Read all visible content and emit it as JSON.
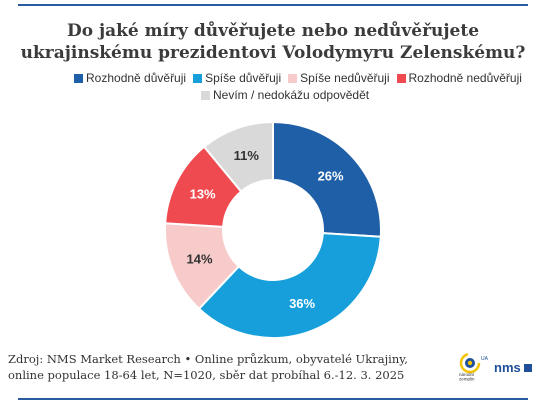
{
  "title": "Do jaké míry důvěřujete nebo nedůvěřujete ukrajinskému prezidentovi Volodymyru Zelenskému?",
  "legend": [
    {
      "label": "Rozhodně důvěřuji",
      "color": "#1f5fa8"
    },
    {
      "label": "Spíše důvěřuji",
      "color": "#169fdb"
    },
    {
      "label": "Spíše nedůvěřuji",
      "color": "#f8cbcb"
    },
    {
      "label": "Rozhodně nedůvěřuji",
      "color": "#ef4a50"
    },
    {
      "label": "Nevím / nedokážu odpovědět",
      "color": "#d9d9d9"
    }
  ],
  "chart_data": {
    "type": "pie",
    "donut": true,
    "title": "Do jaké míry důvěřujete nebo nedůvěřujete ukrajinskému prezidentovi Volodymyru Zelenskému?",
    "categories": [
      "Rozhodně důvěřuji",
      "Spíše důvěřuji",
      "Spíše nedůvěřuji",
      "Rozhodně nedůvěřuji",
      "Nevím / nedokážu odpovědět"
    ],
    "values": [
      26,
      36,
      14,
      13,
      11
    ],
    "labels": [
      "26%",
      "36%",
      "14%",
      "13%",
      "11%"
    ],
    "colors": [
      "#1f5fa8",
      "#169fdb",
      "#f8cbcb",
      "#ef4a50",
      "#d9d9d9"
    ],
    "legend_position": "top"
  },
  "source": "Zdroj: NMS Market Research • Online průzkum, obyvatelé Ukrajiny, online populace 18-64 let, N=1020, sběr dat probíhal 6.-12. 3. 2025",
  "logos": {
    "nav_text": "národní\nzemplin",
    "nav_ua": "UA",
    "nms": "nms"
  }
}
